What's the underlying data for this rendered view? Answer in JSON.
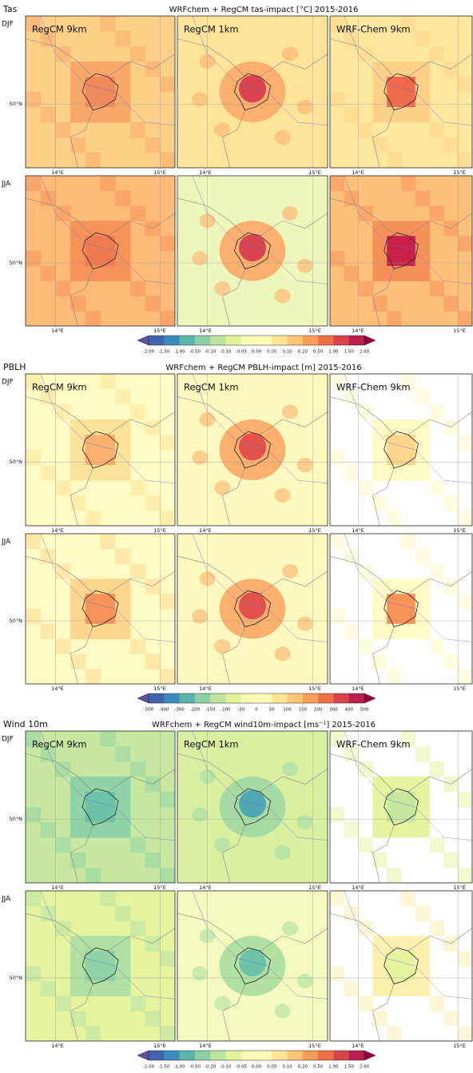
{
  "colormap": [
    "#5e4fa2",
    "#4063a9",
    "#3b8bbe",
    "#5bb6a9",
    "#8cd1a4",
    "#bde5a0",
    "#e2f39a",
    "#f9fcb6",
    "#fffcb6",
    "#fee593",
    "#fdc574",
    "#fa9c58",
    "#f07046",
    "#d9434c",
    "#b9204b",
    "#9e0142"
  ],
  "sections": [
    {
      "label": "Tas",
      "title": "WRFchem + RegCM tas-impact [°C] 2015-2016",
      "rows": [
        "DJF",
        "JJA"
      ],
      "panels": [
        "RegCM 9km",
        "RegCM 1km",
        "WRF-Chem 9km"
      ],
      "xticks": [
        "14°E",
        "15°E"
      ],
      "yticks": [
        "50°N"
      ],
      "colorbar_ticks": [
        "-2.00",
        "-1.50",
        "-1.00",
        "-0.50",
        "-0.20",
        "-0.10",
        "-0.05",
        "0.00",
        "0.05",
        "0.10",
        "0.20",
        "0.50",
        "1.00",
        "1.50",
        "2.00"
      ]
    },
    {
      "label": "PBLH",
      "title": "WRFchem + RegCM PBLH-impact [m] 2015-2016",
      "rows": [
        "DJF",
        "JJA"
      ],
      "panels": [
        "RegCM 9km",
        "RegCM 1km",
        "WRF-Chem 9km"
      ],
      "xticks": [
        "14°E",
        "15°E"
      ],
      "yticks": [
        "50°N"
      ],
      "colorbar_ticks": [
        "-500",
        "-400",
        "-300",
        "-200",
        "-150",
        "-100",
        "-50",
        "0",
        "50",
        "100",
        "150",
        "200",
        "300",
        "400",
        "500"
      ]
    },
    {
      "label": "Wind 10m",
      "title": "WRFchem + RegCM wind10m-impact [ms⁻¹] 2015-2016",
      "rows": [
        "DJF",
        "JJA"
      ],
      "panels": [
        "RegCM 9km",
        "RegCM 1km",
        "WRF-Chem 9km"
      ],
      "xticks": [
        "14°E",
        "15°E"
      ],
      "yticks": [
        "50°N"
      ],
      "colorbar_ticks": [
        "-2.00",
        "-1.50",
        "-1.00",
        "-0.50",
        "-0.20",
        "-0.10",
        "-0.05",
        "0.00",
        "0.05",
        "0.10",
        "0.20",
        "0.50",
        "1.00",
        "1.50",
        "2.00"
      ]
    }
  ]
}
